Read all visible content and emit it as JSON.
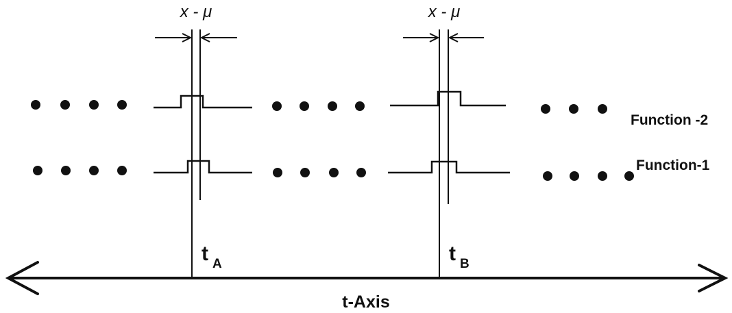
{
  "annotations": {
    "offset_left": "x - μ",
    "offset_right": "x - μ"
  },
  "functions": {
    "f2_label": "Function -2",
    "f1_label": "Function-1"
  },
  "axis": {
    "label": "t-Axis",
    "marker_a": {
      "main": "t",
      "sub": "A"
    },
    "marker_b": {
      "main": "t",
      "sub": "B"
    }
  },
  "colors": {
    "ink": "#111111",
    "background": "#ffffff"
  }
}
